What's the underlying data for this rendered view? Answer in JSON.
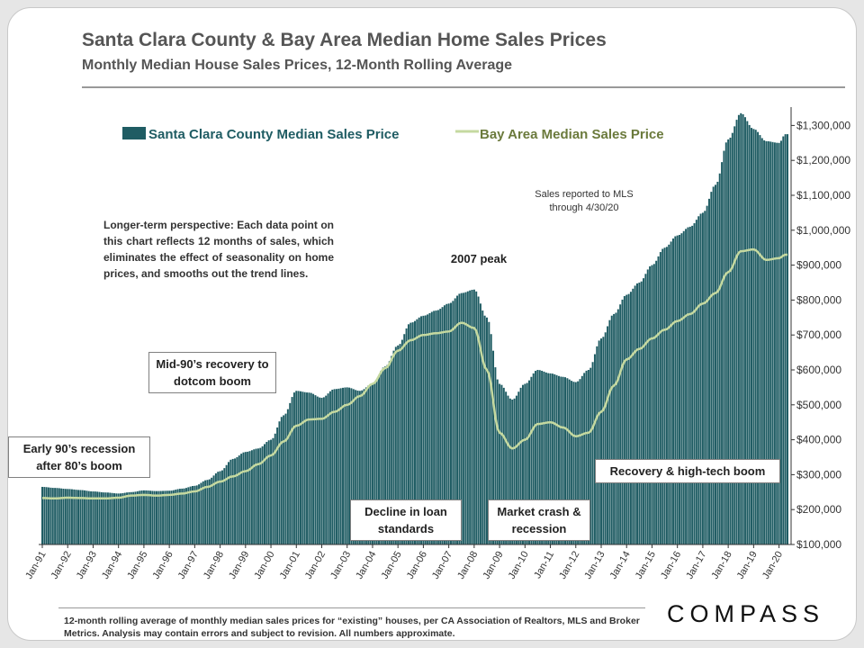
{
  "header": {
    "title": "Santa Clara County & Bay Area Median Home Sales Prices",
    "subtitle": "Monthly Median House Sales Prices, 12-Month Rolling Average"
  },
  "chart_data": {
    "type": "bar",
    "x_labels": [
      "Jan-91",
      "Jan-92",
      "Jan-93",
      "Jan-94",
      "Jan-95",
      "Jan-96",
      "Jan-97",
      "Jan-98",
      "Jan-99",
      "Jan-00",
      "Jan-01",
      "Jan-02",
      "Jan-03",
      "Jan-04",
      "Jan-05",
      "Jan-06",
      "Jan-07",
      "Jan-08",
      "Jan-09",
      "Jan-10",
      "Jan-11",
      "Jan-12",
      "Jan-13",
      "Jan-14",
      "Jan-15",
      "Jan-16",
      "Jan-17",
      "Jan-18",
      "Jan-19",
      "Jan-20"
    ],
    "y_ticks": [
      "$100,000",
      "$200,000",
      "$300,000",
      "$400,000",
      "$500,000",
      "$600,000",
      "$700,000",
      "$800,000",
      "$900,000",
      "$1,000,000",
      "$1,100,000",
      "$1,200,000",
      "$1,300,000"
    ],
    "ylim": [
      100000,
      1350000
    ],
    "colors": {
      "bar": "#1f5c63",
      "line": "#c5d9a0",
      "legend_line_text": "#6b7a3c",
      "legend_bar_text": "#1f5c63"
    },
    "series": [
      {
        "name": "Santa Clara County Median Sales Price",
        "type": "bar",
        "points": [
          [
            "1991-01",
            265000
          ],
          [
            "1991-07",
            262000
          ],
          [
            "1992-01",
            259000
          ],
          [
            "1992-07",
            256000
          ],
          [
            "1993-01",
            252000
          ],
          [
            "1993-07",
            249000
          ],
          [
            "1994-01",
            246000
          ],
          [
            "1994-07",
            250000
          ],
          [
            "1995-01",
            255000
          ],
          [
            "1995-07",
            253000
          ],
          [
            "1996-01",
            254000
          ],
          [
            "1996-07",
            260000
          ],
          [
            "1997-01",
            268000
          ],
          [
            "1997-07",
            285000
          ],
          [
            "1998-01",
            310000
          ],
          [
            "1998-07",
            345000
          ],
          [
            "1999-01",
            365000
          ],
          [
            "1999-07",
            375000
          ],
          [
            "2000-01",
            400000
          ],
          [
            "2000-07",
            470000
          ],
          [
            "2001-01",
            540000
          ],
          [
            "2001-07",
            535000
          ],
          [
            "2002-01",
            520000
          ],
          [
            "2002-07",
            545000
          ],
          [
            "2003-01",
            550000
          ],
          [
            "2003-07",
            540000
          ],
          [
            "2004-01",
            560000
          ],
          [
            "2004-07",
            610000
          ],
          [
            "2005-01",
            670000
          ],
          [
            "2005-07",
            735000
          ],
          [
            "2006-01",
            755000
          ],
          [
            "2006-07",
            770000
          ],
          [
            "2007-01",
            790000
          ],
          [
            "2007-07",
            820000
          ],
          [
            "2008-01",
            830000
          ],
          [
            "2008-07",
            750000
          ],
          [
            "2009-01",
            560000
          ],
          [
            "2009-07",
            515000
          ],
          [
            "2010-01",
            560000
          ],
          [
            "2010-07",
            600000
          ],
          [
            "2011-01",
            590000
          ],
          [
            "2011-07",
            580000
          ],
          [
            "2012-01",
            565000
          ],
          [
            "2012-07",
            600000
          ],
          [
            "2013-01",
            690000
          ],
          [
            "2013-07",
            760000
          ],
          [
            "2014-01",
            815000
          ],
          [
            "2014-07",
            850000
          ],
          [
            "2015-01",
            900000
          ],
          [
            "2015-07",
            950000
          ],
          [
            "2016-01",
            985000
          ],
          [
            "2016-07",
            1010000
          ],
          [
            "2017-01",
            1050000
          ],
          [
            "2017-07",
            1130000
          ],
          [
            "2018-01",
            1260000
          ],
          [
            "2018-07",
            1335000
          ],
          [
            "2019-01",
            1290000
          ],
          [
            "2019-07",
            1255000
          ],
          [
            "2020-01",
            1250000
          ],
          [
            "2020-04",
            1275000
          ]
        ]
      },
      {
        "name": "Bay Area Median Sales Price",
        "type": "line",
        "points": [
          [
            "1991-01",
            233000
          ],
          [
            "1991-07",
            232000
          ],
          [
            "1992-01",
            234000
          ],
          [
            "1992-07",
            233000
          ],
          [
            "1993-01",
            232000
          ],
          [
            "1993-07",
            232000
          ],
          [
            "1994-01",
            234000
          ],
          [
            "1994-07",
            240000
          ],
          [
            "1995-01",
            242000
          ],
          [
            "1995-07",
            240000
          ],
          [
            "1996-01",
            242000
          ],
          [
            "1996-07",
            246000
          ],
          [
            "1997-01",
            252000
          ],
          [
            "1997-07",
            265000
          ],
          [
            "1998-01",
            280000
          ],
          [
            "1998-07",
            295000
          ],
          [
            "1999-01",
            310000
          ],
          [
            "1999-07",
            330000
          ],
          [
            "2000-01",
            355000
          ],
          [
            "2000-07",
            395000
          ],
          [
            "2001-01",
            440000
          ],
          [
            "2001-07",
            458000
          ],
          [
            "2002-01",
            460000
          ],
          [
            "2002-07",
            480000
          ],
          [
            "2003-01",
            500000
          ],
          [
            "2003-07",
            525000
          ],
          [
            "2004-01",
            560000
          ],
          [
            "2004-07",
            605000
          ],
          [
            "2005-01",
            655000
          ],
          [
            "2005-07",
            685000
          ],
          [
            "2006-01",
            700000
          ],
          [
            "2006-07",
            705000
          ],
          [
            "2007-01",
            710000
          ],
          [
            "2007-07",
            735000
          ],
          [
            "2008-01",
            720000
          ],
          [
            "2008-07",
            600000
          ],
          [
            "2009-01",
            420000
          ],
          [
            "2009-07",
            375000
          ],
          [
            "2010-01",
            400000
          ],
          [
            "2010-07",
            445000
          ],
          [
            "2011-01",
            450000
          ],
          [
            "2011-07",
            435000
          ],
          [
            "2012-01",
            410000
          ],
          [
            "2012-07",
            420000
          ],
          [
            "2013-01",
            480000
          ],
          [
            "2013-07",
            555000
          ],
          [
            "2014-01",
            630000
          ],
          [
            "2014-07",
            660000
          ],
          [
            "2015-01",
            690000
          ],
          [
            "2015-07",
            715000
          ],
          [
            "2016-01",
            740000
          ],
          [
            "2016-07",
            760000
          ],
          [
            "2017-01",
            790000
          ],
          [
            "2017-07",
            820000
          ],
          [
            "2018-01",
            880000
          ],
          [
            "2018-07",
            940000
          ],
          [
            "2019-01",
            945000
          ],
          [
            "2019-07",
            915000
          ],
          [
            "2020-01",
            920000
          ],
          [
            "2020-04",
            930000
          ]
        ]
      }
    ],
    "annotations": {
      "note": "Longer-term perspective:  Each data point on this chart reflects 12 months of sales, which eliminates the effect of seasonality on home prices, and smooths out the trend lines.",
      "mls": "Sales reported to MLS through 4/30/20",
      "peak": "2007 peak",
      "early90s": "Early 90’s recession after 80’s boom",
      "mid90s": "Mid-90’s recovery to dotcom boom",
      "decline": "Decline in loan standards",
      "crash": "Market crash & recession",
      "recovery": "Recovery & high-tech boom"
    }
  },
  "footer": {
    "note": "12-month rolling average of monthly median sales prices for “existing” houses, per CA Association of Realtors, MLS and Broker Metrics.  Analysis may contain errors and subject to revision. All numbers approximate.",
    "logo": "COMPASS"
  }
}
